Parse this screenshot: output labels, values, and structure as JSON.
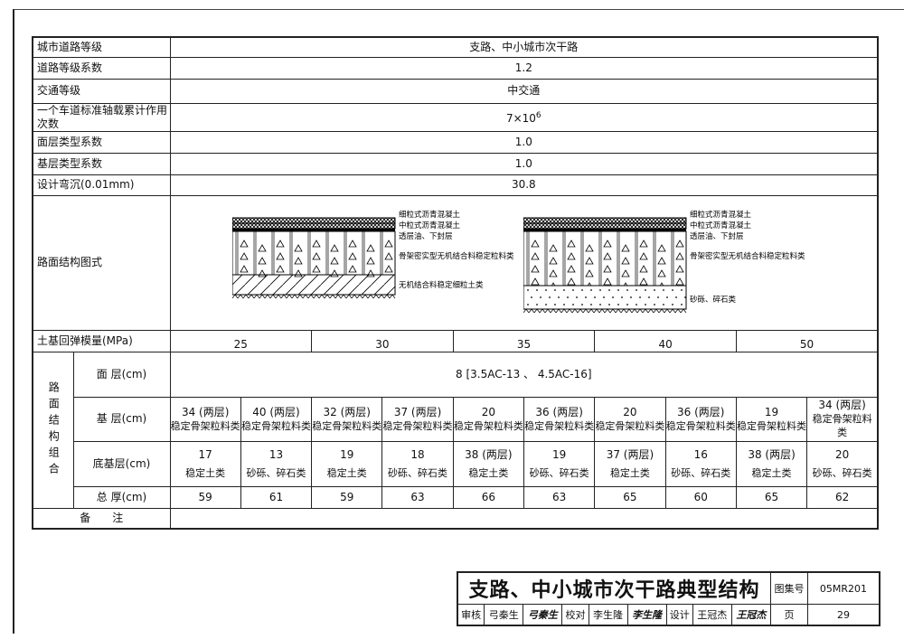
{
  "params": [
    {
      "label": "城市道路等级",
      "value": "支路、中小城市次干路"
    },
    {
      "label": "道路等级系数",
      "value": "1.2"
    },
    {
      "label": "交通等级",
      "value": "中交通"
    },
    {
      "label": "一个车道标准轴载累计作用次数",
      "value": "7×10",
      "exp": "6"
    },
    {
      "label": "面层类型系数",
      "value": "1.0"
    },
    {
      "label": "基层类型系数",
      "value": "1.0"
    },
    {
      "label": "设计弯沉(0.01mm)",
      "value": "30.8"
    }
  ],
  "diagram": {
    "label": "路面结构图式",
    "left": {
      "layers": [
        "细粒式沥青混凝土",
        "中粒式沥青混凝土",
        "透层油、下封层",
        "骨架密实型无机结合料稳定粒料类",
        "无机结合料稳定细粒土类"
      ]
    },
    "right": {
      "layers": [
        "细粒式沥青混凝土",
        "中粒式沥青混凝土",
        "透层油、下封层",
        "骨架密实型无机结合料稳定粒料类",
        "砂砾、碎石类"
      ]
    }
  },
  "modulus": {
    "label": "土基回弹模量(MPa)",
    "values": [
      "25",
      "30",
      "35",
      "40",
      "50"
    ]
  },
  "combo": {
    "label": "路面结构组合",
    "surface": {
      "label": "面 层(cm)",
      "value": "8 [3.5AC-13 、 4.5AC-16]"
    },
    "base": {
      "label": "基 层(cm)",
      "cells": [
        {
          "t": "34 (两层)",
          "m": "稳定骨架粒料类"
        },
        {
          "t": "40 (两层)",
          "m": "稳定骨架粒料类"
        },
        {
          "t": "32 (两层)",
          "m": "稳定骨架粒料类"
        },
        {
          "t": "37 (两层)",
          "m": "稳定骨架粒料类"
        },
        {
          "t": "20",
          "m": "稳定骨架粒料类"
        },
        {
          "t": "36 (两层)",
          "m": "稳定骨架粒料类"
        },
        {
          "t": "20",
          "m": "稳定骨架粒料类"
        },
        {
          "t": "36 (两层)",
          "m": "稳定骨架粒料类"
        },
        {
          "t": "19",
          "m": "稳定骨架粒料类"
        },
        {
          "t": "34 (两层)",
          "m": "稳定骨架粒料类"
        }
      ]
    },
    "subbase": {
      "label": "底基层(cm)",
      "cells": [
        {
          "t": "17",
          "m": "稳定土类"
        },
        {
          "t": "13",
          "m": "砂砾、碎石类"
        },
        {
          "t": "19",
          "m": "稳定土类"
        },
        {
          "t": "18",
          "m": "砂砾、碎石类"
        },
        {
          "t": "38 (两层)",
          "m": "稳定土类"
        },
        {
          "t": "19",
          "m": "砂砾、碎石类"
        },
        {
          "t": "37 (两层)",
          "m": "稳定土类"
        },
        {
          "t": "16",
          "m": "砂砾、碎石类"
        },
        {
          "t": "38 (两层)",
          "m": "稳定土类"
        },
        {
          "t": "20",
          "m": "砂砾、碎石类"
        }
      ]
    },
    "total": {
      "label": "总 厚(cm)",
      "values": [
        "59",
        "61",
        "59",
        "63",
        "66",
        "63",
        "65",
        "60",
        "65",
        "62"
      ]
    }
  },
  "remarks": {
    "label": "备　　注",
    "value": ""
  },
  "titleblock": {
    "title": "支路、中小城市次干路典型结构",
    "atlas_label": "图集号",
    "atlas_no": "05MR201",
    "page_label": "页",
    "page_no": "29",
    "review_label": "审核",
    "reviewer": "弓秦生",
    "reviewer_sig": "弓秦生",
    "check_label": "校对",
    "checker": "李生隆",
    "checker_sig": "李生隆",
    "design_label": "设计",
    "designer": "王冠杰",
    "designer_sig": "王冠杰"
  }
}
